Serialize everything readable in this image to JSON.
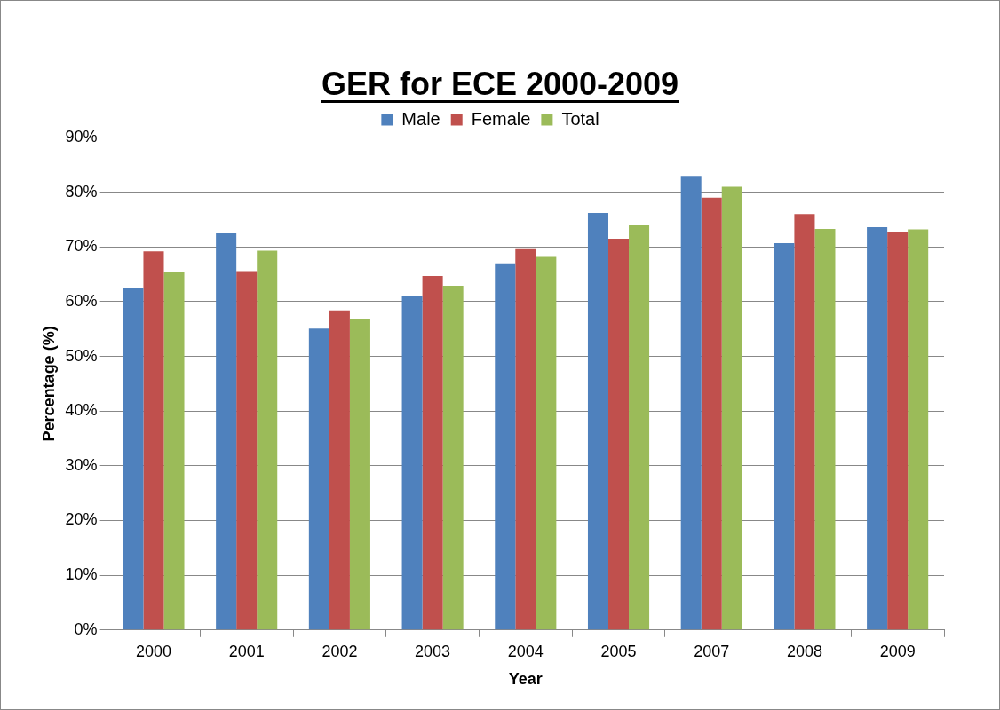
{
  "chart_data": {
    "type": "bar",
    "title": "GER for ECE 2000-2009",
    "xlabel": "Year",
    "ylabel": "Percentage (%)",
    "categories": [
      "2000",
      "2001",
      "2002",
      "2003",
      "2004",
      "2005",
      "2007",
      "2008",
      "2009"
    ],
    "series": [
      {
        "name": "Male",
        "color": "#4f81bd",
        "values": [
          62.6,
          72.6,
          55.1,
          61.1,
          67.0,
          76.2,
          83.0,
          70.7,
          73.6
        ]
      },
      {
        "name": "Female",
        "color": "#c0504d",
        "values": [
          69.2,
          65.6,
          58.4,
          64.7,
          69.6,
          71.5,
          79.0,
          76.0,
          72.8
        ]
      },
      {
        "name": "Total",
        "color": "#9bbb59",
        "values": [
          65.5,
          69.3,
          56.8,
          62.9,
          68.2,
          74.0,
          81.0,
          73.3,
          73.2
        ]
      }
    ],
    "ylim": [
      0,
      90
    ],
    "yticks": [
      {
        "value": 0,
        "label": "0%"
      },
      {
        "value": 10,
        "label": "10%"
      },
      {
        "value": 20,
        "label": "20%"
      },
      {
        "value": 30,
        "label": "30%"
      },
      {
        "value": 40,
        "label": "40%"
      },
      {
        "value": 50,
        "label": "50%"
      },
      {
        "value": 60,
        "label": "60%"
      },
      {
        "value": 70,
        "label": "70%"
      },
      {
        "value": 80,
        "label": "80%"
      },
      {
        "value": 90,
        "label": "90%"
      }
    ],
    "grid": "y",
    "legend": "top"
  }
}
